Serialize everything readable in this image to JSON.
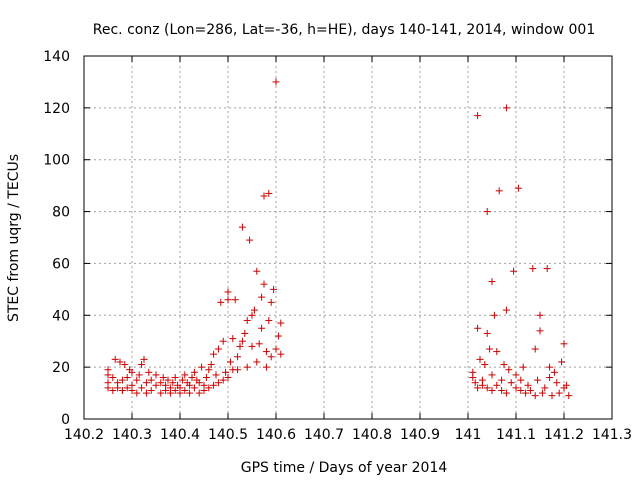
{
  "chart_data": {
    "type": "scatter",
    "title": "Rec. conz (Lon=286, Lat=-36, h=HE), days 140-141, 2014, window 001",
    "xlabel": "GPS time / Days of year 2014",
    "ylabel": "STEC from uqrg / TECUs",
    "xlim": [
      140.2,
      141.3
    ],
    "ylim": [
      0,
      140
    ],
    "xticks": [
      140.2,
      140.3,
      140.4,
      140.5,
      140.6,
      140.7,
      140.8,
      140.9,
      141,
      141.1,
      141.2,
      141.3
    ],
    "xtick_labels": [
      "140.2",
      "140.3",
      "140.4",
      "140.5",
      "140.6",
      "140.7",
      "140.8",
      "140.9",
      "141",
      "141.1",
      "141.2",
      "141.3"
    ],
    "yticks": [
      0,
      20,
      40,
      60,
      80,
      100,
      120,
      140
    ],
    "ytick_labels": [
      "0",
      "20",
      "40",
      "60",
      "80",
      "100",
      "120",
      "140"
    ],
    "grid": true,
    "marker": "+",
    "marker_color": "#cc0000",
    "series": [
      {
        "points": [
          [
            140.25,
            12
          ],
          [
            140.25,
            14
          ],
          [
            140.25,
            17
          ],
          [
            140.25,
            19
          ],
          [
            140.26,
            11
          ],
          [
            140.26,
            16
          ],
          [
            140.265,
            23
          ],
          [
            140.27,
            12
          ],
          [
            140.27,
            14
          ],
          [
            140.275,
            22
          ],
          [
            140.28,
            11
          ],
          [
            140.28,
            15
          ],
          [
            140.285,
            21
          ],
          [
            140.29,
            12
          ],
          [
            140.29,
            16
          ],
          [
            140.295,
            19
          ],
          [
            140.3,
            11
          ],
          [
            140.3,
            13
          ],
          [
            140.3,
            18
          ],
          [
            140.31,
            10
          ],
          [
            140.31,
            15
          ],
          [
            140.315,
            17
          ],
          [
            140.32,
            12
          ],
          [
            140.32,
            21
          ],
          [
            140.325,
            23
          ],
          [
            140.33,
            10
          ],
          [
            140.33,
            14
          ],
          [
            140.335,
            18
          ],
          [
            140.34,
            11
          ],
          [
            140.34,
            15
          ],
          [
            140.35,
            13
          ],
          [
            140.35,
            17
          ],
          [
            140.36,
            10
          ],
          [
            140.36,
            14
          ],
          [
            140.365,
            16
          ],
          [
            140.37,
            11
          ],
          [
            140.37,
            13
          ],
          [
            140.375,
            15
          ],
          [
            140.38,
            10
          ],
          [
            140.38,
            12
          ],
          [
            140.385,
            14
          ],
          [
            140.39,
            11
          ],
          [
            140.39,
            16
          ],
          [
            140.395,
            13
          ],
          [
            140.4,
            10
          ],
          [
            140.4,
            12
          ],
          [
            140.405,
            15
          ],
          [
            140.41,
            11
          ],
          [
            140.41,
            17
          ],
          [
            140.415,
            14
          ],
          [
            140.42,
            10
          ],
          [
            140.42,
            13
          ],
          [
            140.425,
            16
          ],
          [
            140.43,
            12
          ],
          [
            140.43,
            18
          ],
          [
            140.435,
            15
          ],
          [
            140.44,
            10
          ],
          [
            140.44,
            14
          ],
          [
            140.445,
            20
          ],
          [
            140.45,
            11
          ],
          [
            140.45,
            13
          ],
          [
            140.455,
            16
          ],
          [
            140.46,
            12
          ],
          [
            140.46,
            19
          ],
          [
            140.465,
            21
          ],
          [
            140.47,
            13
          ],
          [
            140.47,
            25
          ],
          [
            140.475,
            17
          ],
          [
            140.48,
            14
          ],
          [
            140.48,
            27
          ],
          [
            140.485,
            45
          ],
          [
            140.49,
            15
          ],
          [
            140.49,
            30
          ],
          [
            140.495,
            18
          ],
          [
            140.5,
            16
          ],
          [
            140.5,
            46
          ],
          [
            140.5,
            49
          ],
          [
            140.505,
            22
          ],
          [
            140.51,
            19
          ],
          [
            140.51,
            31
          ],
          [
            140.515,
            46
          ],
          [
            140.52,
            24
          ],
          [
            140.52,
            19
          ],
          [
            140.525,
            28
          ],
          [
            140.53,
            30
          ],
          [
            140.53,
            74
          ],
          [
            140.535,
            33
          ],
          [
            140.54,
            20
          ],
          [
            140.54,
            38
          ],
          [
            140.545,
            69
          ],
          [
            140.55,
            28
          ],
          [
            140.55,
            40
          ],
          [
            140.555,
            42
          ],
          [
            140.56,
            57
          ],
          [
            140.56,
            22
          ],
          [
            140.565,
            29
          ],
          [
            140.57,
            35
          ],
          [
            140.57,
            47
          ],
          [
            140.575,
            52
          ],
          [
            140.575,
            86
          ],
          [
            140.58,
            20
          ],
          [
            140.58,
            26
          ],
          [
            140.585,
            38
          ],
          [
            140.585,
            87
          ],
          [
            140.59,
            24
          ],
          [
            140.59,
            45
          ],
          [
            140.595,
            50
          ],
          [
            140.6,
            130
          ],
          [
            140.6,
            27
          ],
          [
            140.605,
            32
          ],
          [
            140.61,
            25
          ],
          [
            140.61,
            37
          ]
        ]
      },
      {
        "points": [
          [
            141.01,
            16
          ],
          [
            141.01,
            18
          ],
          [
            141.015,
            14
          ],
          [
            141.02,
            12
          ],
          [
            141.02,
            35
          ],
          [
            141.02,
            117
          ],
          [
            141.025,
            23
          ],
          [
            141.03,
            13
          ],
          [
            141.03,
            15
          ],
          [
            141.035,
            21
          ],
          [
            141.04,
            12
          ],
          [
            141.04,
            80
          ],
          [
            141.04,
            33
          ],
          [
            141.045,
            27
          ],
          [
            141.05,
            11
          ],
          [
            141.05,
            53
          ],
          [
            141.05,
            17
          ],
          [
            141.055,
            40
          ],
          [
            141.06,
            13
          ],
          [
            141.06,
            26
          ],
          [
            141.065,
            88
          ],
          [
            141.07,
            11
          ],
          [
            141.07,
            15
          ],
          [
            141.075,
            21
          ],
          [
            141.08,
            10
          ],
          [
            141.08,
            42
          ],
          [
            141.08,
            120
          ],
          [
            141.085,
            19
          ],
          [
            141.09,
            14
          ],
          [
            141.095,
            57
          ],
          [
            141.1,
            12
          ],
          [
            141.1,
            17
          ],
          [
            141.105,
            89
          ],
          [
            141.11,
            11
          ],
          [
            141.11,
            15
          ],
          [
            141.115,
            20
          ],
          [
            141.12,
            10
          ],
          [
            141.125,
            13
          ],
          [
            141.13,
            11
          ],
          [
            141.135,
            58
          ],
          [
            141.14,
            9
          ],
          [
            141.14,
            27
          ],
          [
            141.145,
            15
          ],
          [
            141.15,
            40
          ],
          [
            141.15,
            34
          ],
          [
            141.155,
            10
          ],
          [
            141.16,
            12
          ],
          [
            141.165,
            58
          ],
          [
            141.17,
            20
          ],
          [
            141.17,
            16
          ],
          [
            141.175,
            9
          ],
          [
            141.18,
            18
          ],
          [
            141.185,
            14
          ],
          [
            141.19,
            10
          ],
          [
            141.195,
            22
          ],
          [
            141.2,
            29
          ],
          [
            141.2,
            12
          ],
          [
            141.205,
            13
          ],
          [
            141.21,
            9
          ]
        ]
      }
    ]
  }
}
